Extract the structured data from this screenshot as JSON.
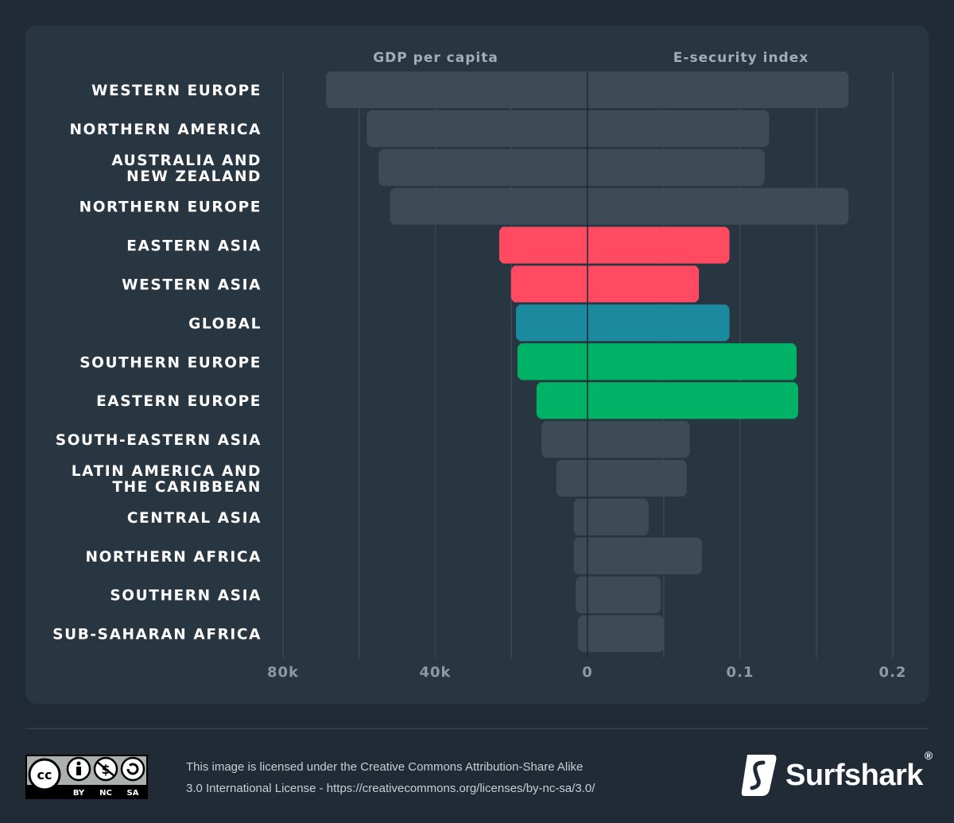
{
  "chart_data": {
    "type": "bar",
    "orientation": "horizontal-butterfly",
    "left_header": "GDP per capita",
    "right_header": "E-security index",
    "categories": [
      "WESTERN EUROPE",
      "NORTHERN AMERICA",
      "AUSTRALIA AND\nNEW ZEALAND",
      "NORTHERN EUROPE",
      "EASTERN ASIA",
      "WESTERN ASIA",
      "GLOBAL",
      "SOUTHERN EUROPE",
      "EASTERN EUROPE",
      "SOUTH-EASTERN ASIA",
      "LATIN AMERICA AND\nTHE CARIBBEAN",
      "CENTRAL ASIA",
      "NORTHERN AFRICA",
      "SOUTHERN ASIA",
      "SUB-SAHARAN AFRICA"
    ],
    "series": [
      {
        "name": "GDP per capita",
        "values": [
          68700,
          58000,
          54900,
          51900,
          23200,
          20100,
          18800,
          18400,
          13400,
          12100,
          8200,
          3600,
          3600,
          3100,
          2500
        ]
      },
      {
        "name": "E-security index",
        "values": [
          0.171,
          0.119,
          0.116,
          0.171,
          0.093,
          0.073,
          0.093,
          0.137,
          0.138,
          0.067,
          0.065,
          0.04,
          0.075,
          0.048,
          0.05
        ]
      }
    ],
    "highlight": [
      "gray",
      "gray",
      "gray",
      "gray",
      "red",
      "red",
      "teal",
      "green",
      "green",
      "gray",
      "gray",
      "gray",
      "gray",
      "gray",
      "gray"
    ],
    "left_ticks": [
      "80k",
      "40k",
      "0"
    ],
    "right_ticks": [
      "0.1",
      "0.2"
    ],
    "left_range": [
      0,
      80000
    ],
    "right_range": [
      0,
      0.2
    ],
    "grid": true,
    "colors": {
      "gray": "#3c4b55",
      "red": "#ff4a62",
      "teal": "#1b8a9e",
      "green": "#00b265",
      "global_label": "#1b8a9e"
    }
  },
  "footer": {
    "license_line1": "This image is licensed under the Creative Commons Attribution-Share Alike",
    "license_line2": "3.0 International License - https://creativecommons.org/licenses/by-nc-sa/3.0/",
    "cc_badge": [
      "BY",
      "NC",
      "SA"
    ],
    "brand": "Surfshark",
    "brand_mark": "®"
  }
}
